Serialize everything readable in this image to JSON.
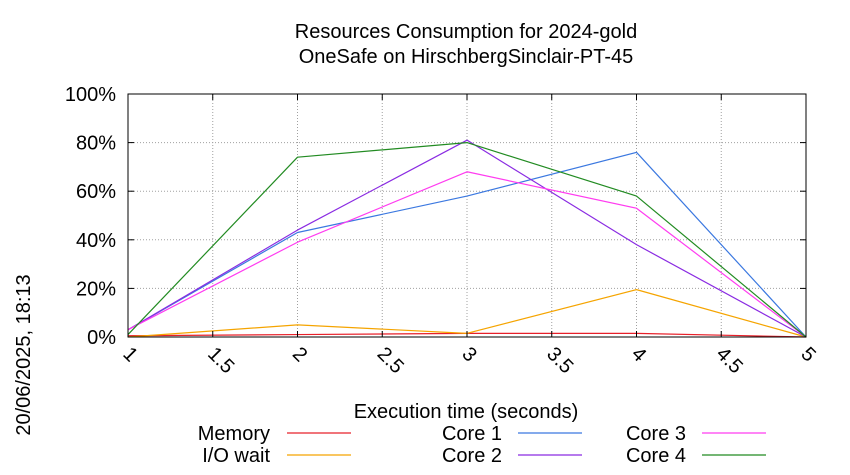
{
  "chart_data": {
    "type": "line",
    "title": "Resources Consumption for 2024-gold",
    "subtitle": "OneSafe on HirschbergSinclair-PT-45",
    "xlabel": "Execution time (seconds)",
    "ylabel": "",
    "side_label": "20/06/2025, 18:13",
    "x": [
      1,
      2,
      3,
      4,
      5
    ],
    "xlim": [
      1,
      5
    ],
    "ylim": [
      0,
      100
    ],
    "x_ticks": [
      "1",
      "1.5",
      "2",
      "2.5",
      "3",
      "3.5",
      "4",
      "4.5",
      "5"
    ],
    "y_ticks": [
      "0%",
      "20%",
      "40%",
      "60%",
      "80%",
      "100%"
    ],
    "grid": true,
    "legend_position": "bottom",
    "series": [
      {
        "name": "Memory",
        "color": "#e8202a",
        "values": [
          0.5,
          1,
          1.5,
          1.5,
          0
        ]
      },
      {
        "name": "I/O wait",
        "color": "#f5a400",
        "values": [
          0,
          5,
          1.5,
          19.5,
          0
        ]
      },
      {
        "name": "Core 1",
        "color": "#3b78e0",
        "values": [
          3,
          43,
          58,
          76,
          0
        ]
      },
      {
        "name": "Core 2",
        "color": "#8a2be2",
        "values": [
          3,
          44,
          81,
          38,
          0
        ]
      },
      {
        "name": "Core 3",
        "color": "#ff3cf0",
        "values": [
          3,
          39,
          68,
          53,
          0
        ]
      },
      {
        "name": "Core 4",
        "color": "#228b22",
        "values": [
          1,
          74,
          80,
          58,
          0
        ]
      }
    ]
  }
}
